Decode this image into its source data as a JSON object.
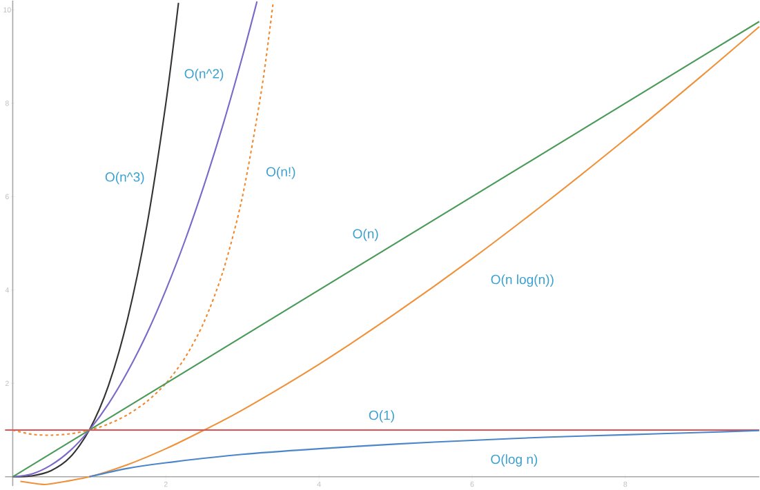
{
  "chart_data": {
    "type": "line",
    "xlim": [
      -0.1,
      9.75
    ],
    "ylim": [
      -0.2,
      10.2
    ],
    "xticks": [
      2,
      4,
      6,
      8
    ],
    "yticks": [
      2,
      4,
      6,
      8,
      10
    ],
    "grid": false,
    "legend": false,
    "marker": "none",
    "series": [
      {
        "name": "O(n^3)",
        "color": "#333333",
        "line_style": "solid",
        "x": [
          0,
          0.25,
          0.5,
          0.75,
          1,
          1.25,
          1.5,
          1.75,
          2,
          2.165
        ],
        "values": [
          0,
          0.02,
          0.13,
          0.42,
          1,
          1.95,
          3.38,
          5.36,
          8,
          10.15
        ]
      },
      {
        "name": "O(n^2)",
        "color": "#7b68c8",
        "line_style": "solid",
        "x": [
          0,
          0.25,
          0.5,
          0.75,
          1,
          1.25,
          1.5,
          1.75,
          2,
          2.25,
          2.5,
          2.75,
          3,
          3.19
        ],
        "values": [
          0,
          0.06,
          0.25,
          0.56,
          1,
          1.56,
          2.25,
          3.06,
          4,
          5.06,
          6.25,
          7.56,
          9,
          10.18
        ]
      },
      {
        "name": "O(n!)",
        "color": "#f08a30",
        "line_style": "dashed",
        "x": [
          0,
          0.25,
          0.5,
          0.75,
          1,
          1.25,
          1.5,
          1.75,
          2,
          2.25,
          2.5,
          2.75,
          3,
          3.25,
          3.4
        ],
        "values": [
          1,
          0.91,
          0.89,
          0.92,
          1,
          1.13,
          1.33,
          1.61,
          2,
          2.55,
          3.32,
          4.42,
          6,
          8.29,
          10.14
        ]
      },
      {
        "name": "O(n)",
        "color": "#4a9a5a",
        "line_style": "solid",
        "x": [
          0,
          9.75
        ],
        "values": [
          0,
          9.75
        ]
      },
      {
        "name": "O(n log(n))",
        "color": "#f0913a",
        "line_style": "solid",
        "x": [
          0.1,
          0.37,
          0.5,
          1,
          1.5,
          2,
          2.5,
          3,
          4,
          5,
          6,
          7,
          8,
          9,
          9.75
        ],
        "values": [
          -0.1,
          -0.16,
          -0.15,
          0,
          0.26,
          0.6,
          1,
          1.43,
          2.41,
          3.5,
          4.67,
          5.92,
          7.23,
          8.59,
          9.64
        ]
      },
      {
        "name": "O(1)",
        "color": "#e05050",
        "line_style": "solid",
        "x": [
          -0.1,
          9.75
        ],
        "values": [
          1,
          1
        ]
      },
      {
        "name": "O(log n)",
        "color": "#4a86c8",
        "line_style": "solid",
        "x": [
          1,
          1.5,
          2,
          3,
          4,
          5,
          6,
          7,
          8,
          9,
          9.75
        ],
        "values": [
          0,
          0.18,
          0.3,
          0.48,
          0.6,
          0.7,
          0.78,
          0.85,
          0.9,
          0.95,
          0.99
        ]
      }
    ]
  }
}
